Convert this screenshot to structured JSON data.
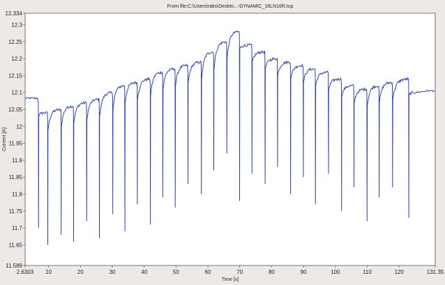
{
  "window": {
    "title": "From file:C:\\Users\\raks\\Deskto...-DYNAMIC_16LN16R.tcp"
  },
  "chart_data": {
    "type": "line",
    "title": "From file:C:\\Users\\raks\\Deskto...-DYNAMIC_16LN16R.tcp",
    "xlabel": "Time [s]",
    "ylabel": "Current [A]",
    "xlim": [
      2.6303,
      131.35
    ],
    "ylim": [
      11.589,
      12.334
    ],
    "x_ticks": [
      2.6303,
      10,
      20,
      30,
      40,
      50,
      60,
      70,
      80,
      90,
      100,
      110,
      120,
      131.35
    ],
    "x_tick_labels": [
      "2.6303",
      "10",
      "20",
      "30",
      "40",
      "50",
      "60",
      "70",
      "80",
      "90",
      "100",
      "110",
      "120",
      "131.35"
    ],
    "y_ticks": [
      11.589,
      11.65,
      11.7,
      11.75,
      11.8,
      11.85,
      11.9,
      11.95,
      12,
      12.05,
      12.1,
      12.15,
      12.2,
      12.25,
      12.3,
      12.334
    ],
    "y_tick_labels": [
      "11.589",
      "11.65",
      "11.7",
      "11.75",
      "11.8",
      "11.85",
      "11.9",
      "11.95",
      "12",
      "12.05",
      "12.1",
      "12.15",
      "12.2",
      "12.25",
      "12.3",
      "12.334"
    ],
    "grid": false,
    "line_color": "#2b3fb0",
    "base": {
      "x": [
        2.6303,
        6.5
      ],
      "y": [
        12.083,
        12.083
      ]
    },
    "pulses": [
      {
        "t": 6.8,
        "min": 11.7,
        "level": 12.04
      },
      {
        "t": 9.7,
        "min": 11.65,
        "level": 12.05
      },
      {
        "t": 13.9,
        "min": 11.68,
        "level": 12.06
      },
      {
        "t": 17.8,
        "min": 11.66,
        "level": 12.07
      },
      {
        "t": 21.9,
        "min": 11.72,
        "level": 12.08
      },
      {
        "t": 25.9,
        "min": 11.67,
        "level": 12.1
      },
      {
        "t": 30.1,
        "min": 11.74,
        "level": 12.12
      },
      {
        "t": 33.9,
        "min": 11.69,
        "level": 12.13
      },
      {
        "t": 37.8,
        "min": 11.77,
        "level": 12.14
      },
      {
        "t": 41.9,
        "min": 11.71,
        "level": 12.16
      },
      {
        "t": 45.8,
        "min": 11.79,
        "level": 12.17
      },
      {
        "t": 49.7,
        "min": 11.76,
        "level": 12.18
      },
      {
        "t": 53.7,
        "min": 11.83,
        "level": 12.19
      },
      {
        "t": 57.9,
        "min": 11.8,
        "level": 12.22
      },
      {
        "t": 61.8,
        "min": 11.87,
        "level": 12.25
      },
      {
        "t": 65.9,
        "min": 11.92,
        "level": 12.28
      },
      {
        "t": 69.9,
        "min": 11.78,
        "level": 12.24
      },
      {
        "t": 73.8,
        "min": 11.86,
        "level": 12.22
      },
      {
        "t": 77.9,
        "min": 11.83,
        "level": 12.2
      },
      {
        "t": 81.8,
        "min": 11.88,
        "level": 12.19
      },
      {
        "t": 85.9,
        "min": 11.8,
        "level": 12.18
      },
      {
        "t": 89.9,
        "min": 11.85,
        "level": 12.17
      },
      {
        "t": 93.7,
        "min": 11.77,
        "level": 12.16
      },
      {
        "t": 97.8,
        "min": 11.86,
        "level": 12.14
      },
      {
        "t": 101.9,
        "min": 11.75,
        "level": 12.12
      },
      {
        "t": 105.8,
        "min": 11.82,
        "level": 12.11
      },
      {
        "t": 109.9,
        "min": 11.72,
        "level": 12.12
      },
      {
        "t": 113.7,
        "min": 11.79,
        "level": 12.13
      },
      {
        "t": 117.9,
        "min": 11.82,
        "level": 12.14
      },
      {
        "t": 123.0,
        "min": 11.73,
        "level": 12.1
      }
    ]
  }
}
